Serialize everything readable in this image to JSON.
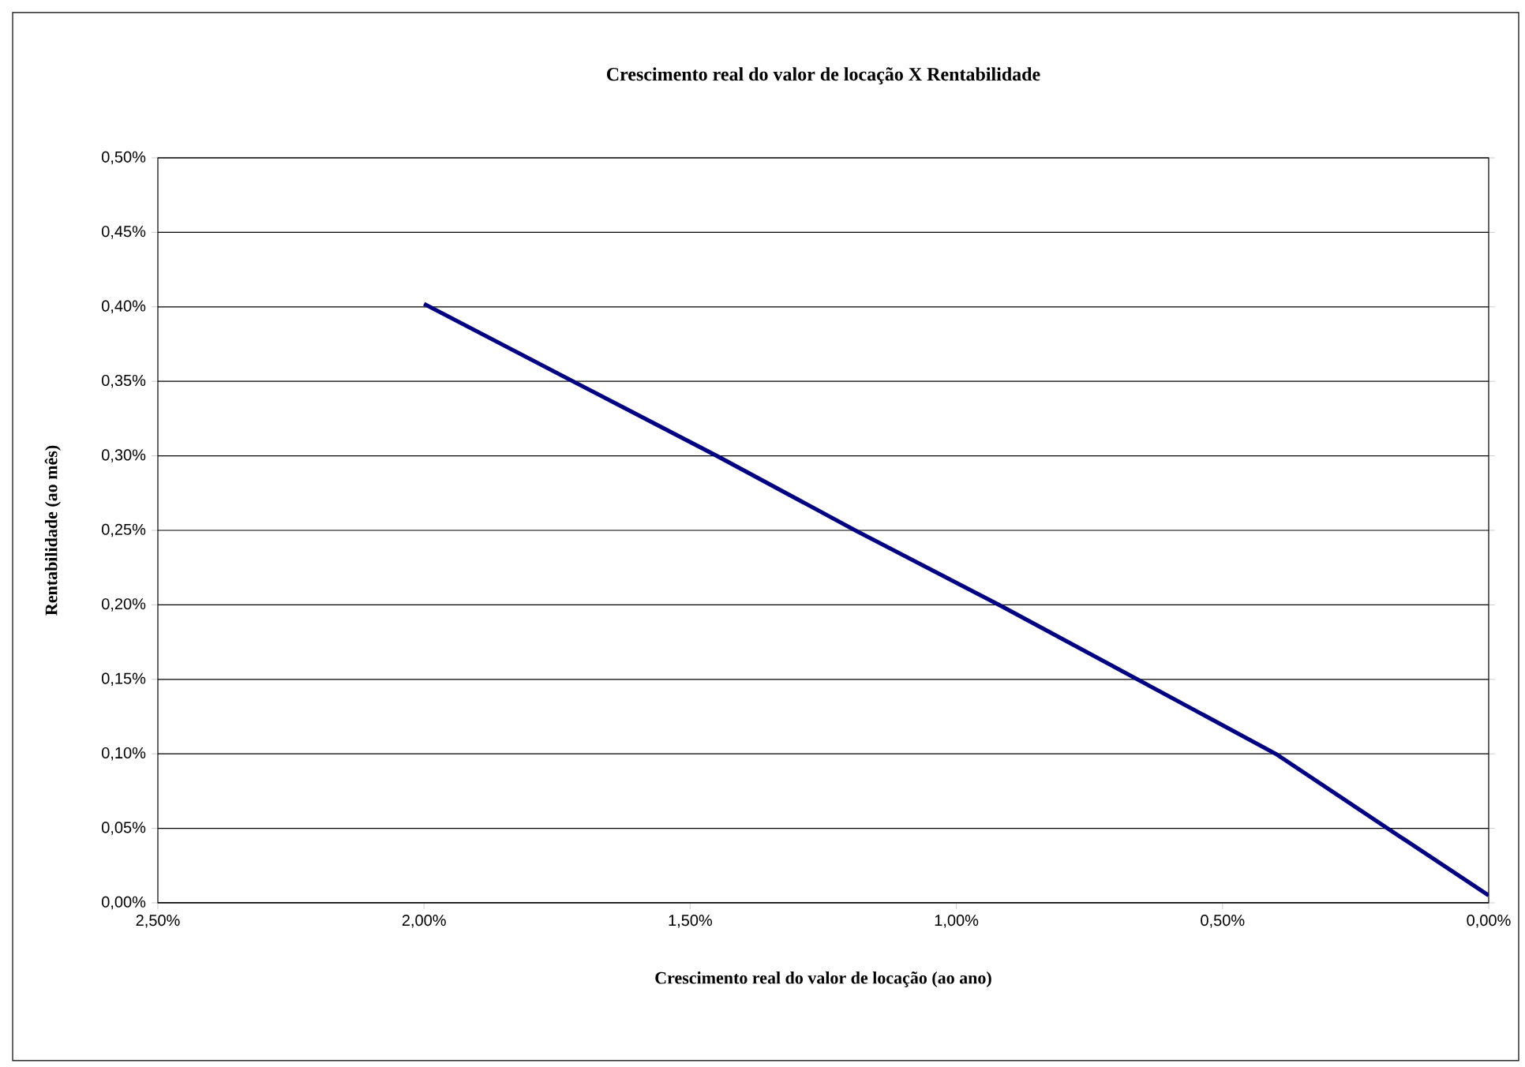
{
  "chart_data": {
    "type": "line",
    "title": "Crescimento real do valor de locação X Rentabilidade",
    "xlabel": "Crescimento real do valor de locação (ao ano)",
    "ylabel": "Rentabilidade (ao mês)",
    "x": [
      2.0,
      1.72,
      1.45,
      1.19,
      0.92,
      0.66,
      0.4,
      0.19,
      0.0
    ],
    "series": [
      {
        "color": "#000080",
        "values": [
          0.402,
          0.35,
          0.3,
          0.25,
          0.2,
          0.15,
          0.1,
          0.05,
          0.005
        ]
      }
    ],
    "xlim": [
      2.5,
      0
    ],
    "ylim": [
      0,
      0.5
    ],
    "xticks": [
      {
        "value": 2.5,
        "label": "2,50%"
      },
      {
        "value": 2.0,
        "label": "2,00%"
      },
      {
        "value": 1.5,
        "label": "1,50%"
      },
      {
        "value": 1.0,
        "label": "1,00%"
      },
      {
        "value": 0.5,
        "label": "0,50%"
      },
      {
        "value": 0.0,
        "label": "0,00%"
      }
    ],
    "yticks": [
      {
        "value": 0.0,
        "label": "0,00%"
      },
      {
        "value": 0.05,
        "label": "0,05%"
      },
      {
        "value": 0.1,
        "label": "0,10%"
      },
      {
        "value": 0.15,
        "label": "0,15%"
      },
      {
        "value": 0.2,
        "label": "0,20%"
      },
      {
        "value": 0.25,
        "label": "0,25%"
      },
      {
        "value": 0.3,
        "label": "0,30%"
      },
      {
        "value": 0.35,
        "label": "0,35%"
      },
      {
        "value": 0.4,
        "label": "0,40%"
      },
      {
        "value": 0.45,
        "label": "0,45%"
      },
      {
        "value": 0.5,
        "label": "0,50%"
      }
    ],
    "grid": "y",
    "line_style": "solid"
  }
}
